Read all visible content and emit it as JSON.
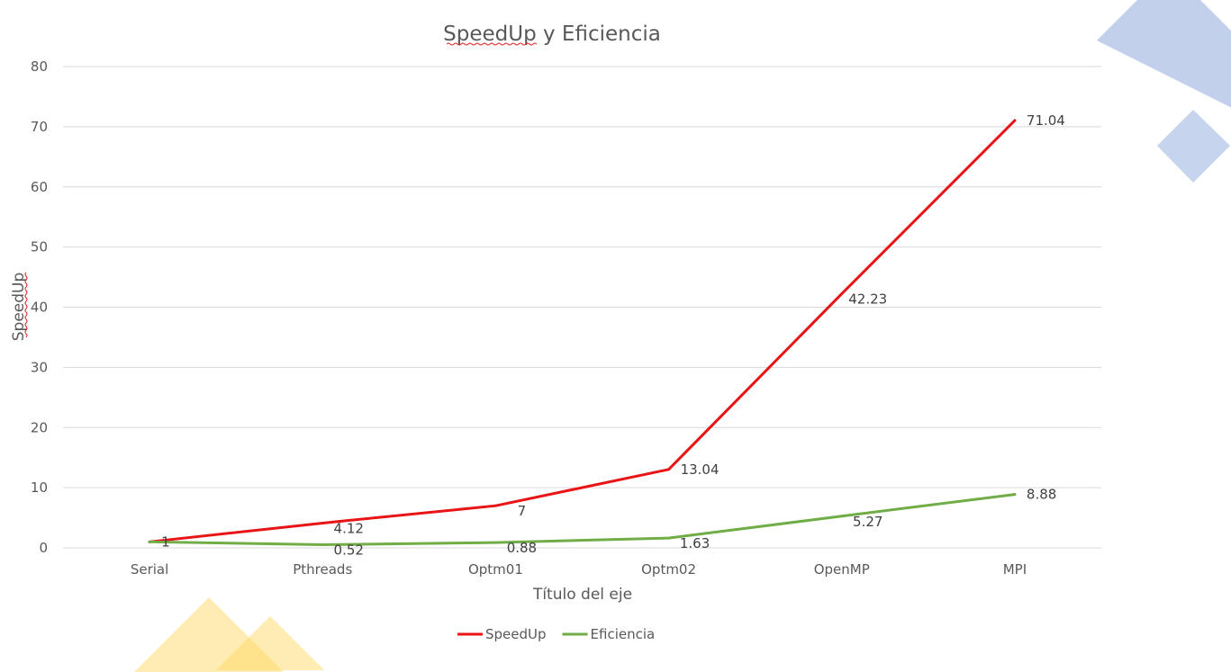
{
  "colors": {
    "speedup": "#e81416",
    "eficiencia": "#70ad47",
    "deco_blue": "#8faadc",
    "deco_yellow": "#ffd966"
  },
  "chart_data": {
    "type": "line",
    "title": "SpeedUp y Eficiencia",
    "xlabel": "Título del eje",
    "ylabel": "SpeedUp",
    "categories": [
      "Serial",
      "Pthreads",
      "Optm01",
      "Optm02",
      "OpenMP",
      "MPI"
    ],
    "ylim": [
      0,
      80
    ],
    "yticks": [
      0,
      10,
      20,
      30,
      40,
      50,
      60,
      70,
      80
    ],
    "grid": true,
    "legend": "bottom",
    "series": [
      {
        "name": "SpeedUp",
        "values": [
          1,
          4.12,
          7,
          13.04,
          42.23,
          71.04
        ],
        "labels": [
          "1",
          "4.12",
          "7",
          "13.04",
          "42.23",
          "71.04"
        ]
      },
      {
        "name": "Eficiencia",
        "values": [
          1,
          0.52,
          0.88,
          1.63,
          5.27,
          8.88
        ],
        "labels": [
          "",
          "0.52",
          "0.88",
          "1.63",
          "5.27",
          "8.88"
        ]
      }
    ]
  }
}
